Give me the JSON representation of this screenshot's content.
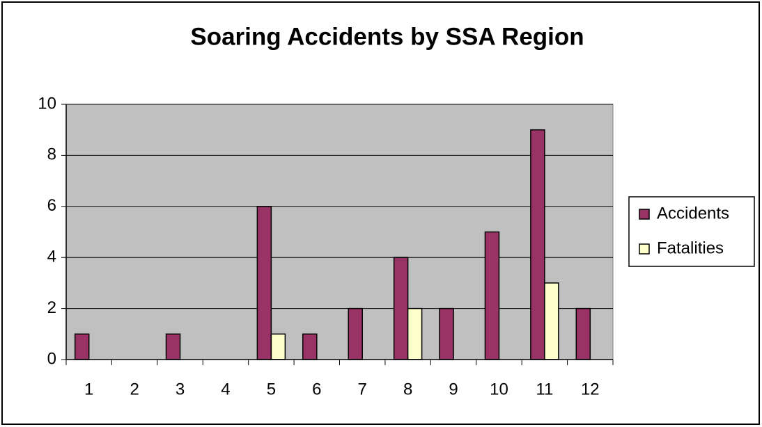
{
  "chart_data": {
    "type": "bar",
    "title": "Soaring Accidents by SSA Region",
    "categories": [
      "1",
      "2",
      "3",
      "4",
      "5",
      "6",
      "7",
      "8",
      "9",
      "10",
      "11",
      "12"
    ],
    "series": [
      {
        "name": "Accidents",
        "color": "#993366",
        "values": [
          1,
          0,
          1,
          0,
          6,
          1,
          2,
          4,
          2,
          5,
          9,
          2
        ]
      },
      {
        "name": "Fatalities",
        "color": "#ffffcc",
        "values": [
          0,
          0,
          0,
          0,
          1,
          0,
          0,
          2,
          0,
          0,
          3,
          0
        ]
      }
    ],
    "ylim": [
      0,
      10
    ],
    "yticks": [
      0,
      2,
      4,
      6,
      8,
      10
    ],
    "grid": true,
    "legend": "right",
    "plot_background": "#c0c0c0"
  }
}
